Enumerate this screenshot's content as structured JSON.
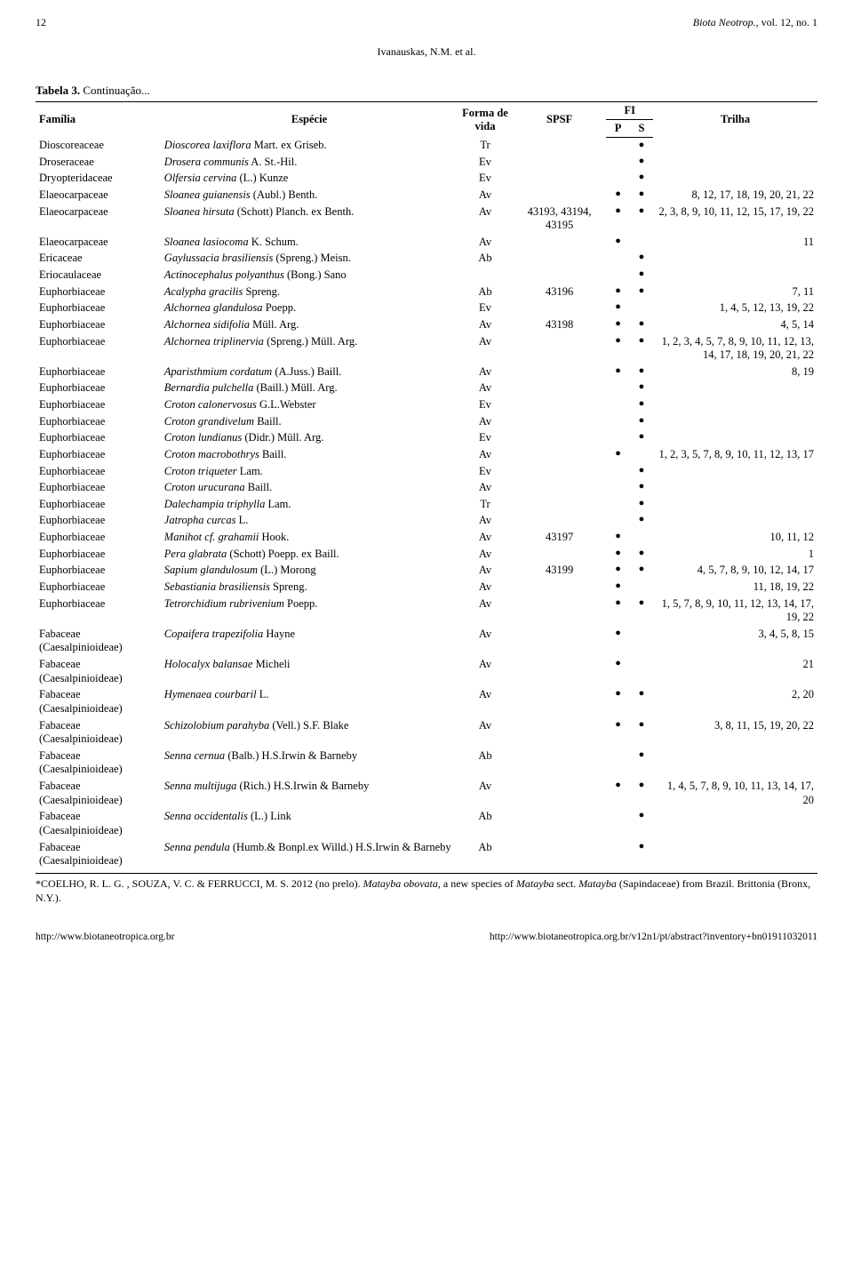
{
  "header": {
    "page_number": "12",
    "journal_name": "Biota Neotrop.",
    "journal_issue": ", vol. 12, no. 1",
    "authors": "Ivanauskas, N.M. et al."
  },
  "table_caption": {
    "label": "Tabela 3.",
    "rest": " Continuação..."
  },
  "columns": {
    "familia": "Família",
    "especie": "Espécie",
    "forma": "Forma de vida",
    "spsf": "SPSF",
    "fi": "FI",
    "p": "P",
    "s": "S",
    "trilha": "Trilha"
  },
  "dot_glyph": "●",
  "rows": [
    {
      "familia": "Dioscoreaceae",
      "especie_ital": "Dioscorea laxiflora",
      "especie_auth": " Mart. ex Griseb.",
      "forma": "Tr",
      "spsf": "",
      "p": false,
      "s": true,
      "trilha": ""
    },
    {
      "familia": "Droseraceae",
      "especie_ital": "Drosera communis",
      "especie_auth": " A. St.-Hil.",
      "forma": "Ev",
      "spsf": "",
      "p": false,
      "s": true,
      "trilha": ""
    },
    {
      "familia": "Dryopteridaceae",
      "especie_ital": "Olfersia cervina",
      "especie_auth": " (L.) Kunze",
      "forma": "Ev",
      "spsf": "",
      "p": false,
      "s": true,
      "trilha": ""
    },
    {
      "familia": "Elaeocarpaceae",
      "especie_ital": "Sloanea guianensis",
      "especie_auth": " (Aubl.) Benth.",
      "forma": "Av",
      "spsf": "",
      "p": true,
      "s": true,
      "trilha": "8, 12, 17, 18, 19, 20, 21, 22"
    },
    {
      "familia": "Elaeocarpaceae",
      "especie_ital": "Sloanea hirsuta",
      "especie_auth": " (Schott) Planch. ex Benth.",
      "forma": "Av",
      "spsf": "43193, 43194, 43195",
      "p": true,
      "s": true,
      "trilha": "2, 3, 8, 9, 10, 11, 12, 15, 17, 19, 22"
    },
    {
      "familia": "Elaeocarpaceae",
      "especie_ital": "Sloanea lasiocoma",
      "especie_auth": " K. Schum.",
      "forma": "Av",
      "spsf": "",
      "p": true,
      "s": false,
      "trilha": "11"
    },
    {
      "familia": "Ericaceae",
      "especie_ital": "Gaylussacia brasiliensis",
      "especie_auth": " (Spreng.) Meisn.",
      "forma": "Ab",
      "spsf": "",
      "p": false,
      "s": true,
      "trilha": ""
    },
    {
      "familia": "Eriocaulaceae",
      "especie_ital": "Actinocephalus polyanthus",
      "especie_auth": " (Bong.) Sano",
      "forma": "",
      "spsf": "",
      "p": false,
      "s": true,
      "trilha": ""
    },
    {
      "familia": "Euphorbiaceae",
      "especie_ital": "Acalypha gracilis",
      "especie_auth": " Spreng.",
      "forma": "Ab",
      "spsf": "43196",
      "p": true,
      "s": true,
      "trilha": "7, 11"
    },
    {
      "familia": "Euphorbiaceae",
      "especie_ital": "Alchornea glandulosa",
      "especie_auth": " Poepp.",
      "forma": "Ev",
      "spsf": "",
      "p": true,
      "s": false,
      "trilha": "1, 4, 5, 12, 13, 19, 22"
    },
    {
      "familia": "Euphorbiaceae",
      "especie_ital": "Alchornea sidifolia",
      "especie_auth": " Müll. Arg.",
      "forma": "Av",
      "spsf": "43198",
      "p": true,
      "s": true,
      "trilha": "4, 5, 14"
    },
    {
      "familia": "Euphorbiaceae",
      "especie_ital": "Alchornea triplinervia",
      "especie_auth": " (Spreng.) Müll. Arg.",
      "forma": "Av",
      "spsf": "",
      "p": true,
      "s": true,
      "trilha": "1, 2, 3, 4, 5, 7, 8, 9, 10, 11, 12, 13, 14, 17, 18, 19, 20, 21, 22"
    },
    {
      "familia": "Euphorbiaceae",
      "especie_ital": "Aparisthmium cordatum",
      "especie_auth": " (A.Juss.) Baill.",
      "forma": "Av",
      "spsf": "",
      "p": true,
      "s": true,
      "trilha": "8, 19"
    },
    {
      "familia": "Euphorbiaceae",
      "especie_ital": "Bernardia pulchella",
      "especie_auth": " (Baill.) Müll. Arg.",
      "forma": "Av",
      "spsf": "",
      "p": false,
      "s": true,
      "trilha": ""
    },
    {
      "familia": "Euphorbiaceae",
      "especie_ital": "Croton calonervosus",
      "especie_auth": " G.L.Webster",
      "forma": "Ev",
      "spsf": "",
      "p": false,
      "s": true,
      "trilha": ""
    },
    {
      "familia": "Euphorbiaceae",
      "especie_ital": "Croton grandivelum",
      "especie_auth": " Baill.",
      "forma": "Av",
      "spsf": "",
      "p": false,
      "s": true,
      "trilha": ""
    },
    {
      "familia": "Euphorbiaceae",
      "especie_ital": "Croton lundianus",
      "especie_auth": " (Didr.) Müll. Arg.",
      "forma": "Ev",
      "spsf": "",
      "p": false,
      "s": true,
      "trilha": ""
    },
    {
      "familia": "Euphorbiaceae",
      "especie_ital": "Croton macrobothrys",
      "especie_auth": " Baill.",
      "forma": "Av",
      "spsf": "",
      "p": true,
      "s": false,
      "trilha": "1, 2, 3, 5, 7, 8, 9, 10, 11, 12, 13, 17"
    },
    {
      "familia": "Euphorbiaceae",
      "especie_ital": "Croton triqueter",
      "especie_auth": " Lam.",
      "forma": "Ev",
      "spsf": "",
      "p": false,
      "s": true,
      "trilha": ""
    },
    {
      "familia": "Euphorbiaceae",
      "especie_ital": "Croton urucurana",
      "especie_auth": " Baill.",
      "forma": "Av",
      "spsf": "",
      "p": false,
      "s": true,
      "trilha": ""
    },
    {
      "familia": "Euphorbiaceae",
      "especie_ital": "Dalechampia triphylla",
      "especie_auth": " Lam.",
      "forma": "Tr",
      "spsf": "",
      "p": false,
      "s": true,
      "trilha": ""
    },
    {
      "familia": "Euphorbiaceae",
      "especie_ital": "Jatropha curcas",
      "especie_auth": " L.",
      "forma": "Av",
      "spsf": "",
      "p": false,
      "s": true,
      "trilha": ""
    },
    {
      "familia": "Euphorbiaceae",
      "especie_ital": "Manihot cf. grahamii",
      "especie_auth": " Hook.",
      "forma": "Av",
      "spsf": "43197",
      "p": true,
      "s": false,
      "trilha": "10, 11, 12"
    },
    {
      "familia": "Euphorbiaceae",
      "especie_ital": "Pera glabrata",
      "especie_auth": " (Schott) Poepp. ex Baill.",
      "forma": "Av",
      "spsf": "",
      "p": true,
      "s": true,
      "trilha": "1"
    },
    {
      "familia": "Euphorbiaceae",
      "especie_ital": "Sapium glandulosum",
      "especie_auth": " (L.) Morong",
      "forma": "Av",
      "spsf": "43199",
      "p": true,
      "s": true,
      "trilha": "4, 5, 7, 8, 9, 10, 12, 14, 17"
    },
    {
      "familia": "Euphorbiaceae",
      "especie_ital": "Sebastiania brasiliensis",
      "especie_auth": " Spreng.",
      "forma": "Av",
      "spsf": "",
      "p": true,
      "s": false,
      "trilha": "11, 18, 19, 22"
    },
    {
      "familia": "Euphorbiaceae",
      "especie_ital": "Tetrorchidium rubrivenium",
      "especie_auth": " Poepp.",
      "forma": "Av",
      "spsf": "",
      "p": true,
      "s": true,
      "trilha": "1, 5, 7, 8, 9, 10, 11, 12, 13, 14, 17, 19, 22"
    },
    {
      "familia": "Fabaceae (Caesalpinioideae)",
      "especie_ital": "Copaifera trapezifolia",
      "especie_auth": " Hayne",
      "forma": "Av",
      "spsf": "",
      "p": true,
      "s": false,
      "trilha": "3, 4, 5, 8, 15"
    },
    {
      "familia": "Fabaceae (Caesalpinioideae)",
      "especie_ital": "Holocalyx balansae",
      "especie_auth": " Micheli",
      "forma": "Av",
      "spsf": "",
      "p": true,
      "s": false,
      "trilha": "21"
    },
    {
      "familia": "Fabaceae (Caesalpinioideae)",
      "especie_ital": "Hymenaea courbaril",
      "especie_auth": " L.",
      "forma": "Av",
      "spsf": "",
      "p": true,
      "s": true,
      "trilha": "2, 20"
    },
    {
      "familia": "Fabaceae (Caesalpinioideae)",
      "especie_ital": "Schizolobium parahyba",
      "especie_auth": " (Vell.) S.F. Blake",
      "forma": "Av",
      "spsf": "",
      "p": true,
      "s": true,
      "trilha": "3, 8, 11, 15, 19, 20, 22"
    },
    {
      "familia": "Fabaceae (Caesalpinioideae)",
      "especie_ital": "Senna cernua",
      "especie_auth": " (Balb.) H.S.Irwin & Barneby",
      "forma": "Ab",
      "spsf": "",
      "p": false,
      "s": true,
      "trilha": ""
    },
    {
      "familia": "Fabaceae (Caesalpinioideae)",
      "especie_ital": "Senna multijuga",
      "especie_auth": " (Rich.) H.S.Irwin & Barneby",
      "forma": "Av",
      "spsf": "",
      "p": true,
      "s": true,
      "trilha": "1, 4, 5, 7, 8, 9, 10, 11, 13, 14, 17, 20"
    },
    {
      "familia": "Fabaceae (Caesalpinioideae)",
      "especie_ital": "Senna occidentalis",
      "especie_auth": " (L.) Link",
      "forma": "Ab",
      "spsf": "",
      "p": false,
      "s": true,
      "trilha": ""
    },
    {
      "familia": "Fabaceae (Caesalpinioideae)",
      "especie_ital": "Senna pendula",
      "especie_auth": " (Humb.& Bonpl.ex Willd.) H.S.Irwin & Barneby",
      "forma": "Ab",
      "spsf": "",
      "p": false,
      "s": true,
      "trilha": ""
    }
  ],
  "footnote": {
    "pre": "*COELHO, R. L. G. , SOUZA, V. C. & FERRUCCI, M. S. 2012 (no prelo). ",
    "i1": "Matayba obovata",
    "mid1": ", a new species of ",
    "i2": "Matayba",
    "mid2": " sect. ",
    "i3": "Matayba",
    "post": " (Sapindaceae) from Brazil. Brittonia (Bronx, N.Y.)."
  },
  "footer": {
    "left": "http://www.biotaneotropica.org.br",
    "right": "http://www.biotaneotropica.org.br/v12n1/pt/abstract?inventory+bn01911032011"
  }
}
